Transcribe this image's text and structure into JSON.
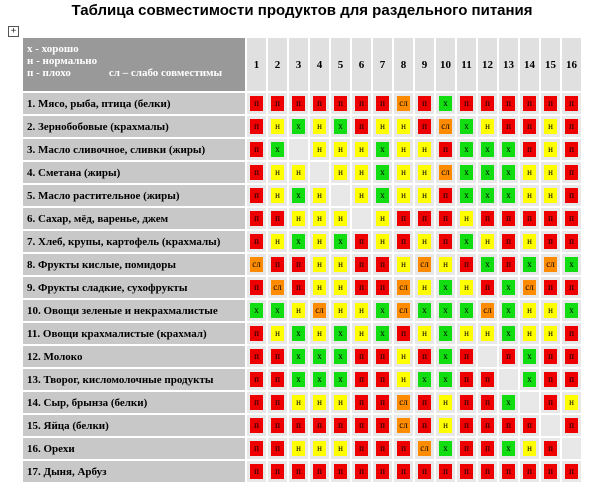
{
  "title": "Таблица совместимости продуктов для раздельного питания",
  "legend": [
    {
      "code": "х",
      "text": " -  хорошо",
      "color": "#11dd11"
    },
    {
      "code": "н",
      "text": " -  нормально",
      "color": "#ffff00"
    },
    {
      "code": "п",
      "text": " - плохо",
      "color": "#ee0000"
    },
    {
      "code": "сл",
      "text": " – слабо совместимы",
      "color": "#ff8c00"
    }
  ],
  "columns": [
    "1",
    "2",
    "3",
    "4",
    "5",
    "6",
    "7",
    "8",
    "9",
    "10",
    "11",
    "12",
    "13",
    "14",
    "15",
    "16"
  ],
  "rows": [
    {
      "label": "1. Мясо, рыба, птица (белки)",
      "cells": [
        "п",
        "п",
        "п",
        "п",
        "п",
        "п",
        "п",
        "сл",
        "п",
        "х",
        "п",
        "п",
        "п",
        "п",
        "п",
        "п"
      ]
    },
    {
      "label": "2. Зернобобовые (крахмалы)",
      "cells": [
        "п",
        "н",
        "х",
        "н",
        "х",
        "п",
        "н",
        "н",
        "п",
        "сл",
        "х",
        "н",
        "п",
        "п",
        "н",
        "п"
      ]
    },
    {
      "label": "3. Масло сливочное, сливки (жиры)",
      "cells": [
        "п",
        "х",
        "",
        "н",
        "н",
        "н",
        "х",
        "н",
        "н",
        "п",
        "х",
        "х",
        "х",
        "п",
        "н",
        "п"
      ]
    },
    {
      "label": "4. Сметана (жиры)",
      "cells": [
        "п",
        "н",
        "н",
        "",
        "н",
        "н",
        "х",
        "н",
        "н",
        "сл",
        "х",
        "х",
        "х",
        "н",
        "н",
        "п"
      ]
    },
    {
      "label": "5. Масло растительное (жиры)",
      "cells": [
        "п",
        "н",
        "х",
        "н",
        "",
        "н",
        "х",
        "н",
        "н",
        "п",
        "х",
        "х",
        "х",
        "н",
        "н",
        "п"
      ]
    },
    {
      "label": "6. Сахар, мёд, варенье, джем",
      "cells": [
        "п",
        "п",
        "н",
        "н",
        "н",
        "",
        "н",
        "п",
        "п",
        "п",
        "н",
        "п",
        "п",
        "п",
        "п",
        "п"
      ]
    },
    {
      "label": "7. Хлеб, крупы, картофель (крахмалы)",
      "cells": [
        "п",
        "н",
        "х",
        "н",
        "х",
        "п",
        "н",
        "п",
        "н",
        "п",
        "х",
        "н",
        "п",
        "н",
        "п",
        "п"
      ]
    },
    {
      "label": "8. Фрукты кислые, помидоры",
      "cells": [
        "сл",
        "п",
        "п",
        "н",
        "н",
        "п",
        "п",
        "н",
        "сл",
        "н",
        "п",
        "х",
        "п",
        "х",
        "сл",
        "х"
      ]
    },
    {
      "label": "9. Фрукты сладкие, сухофрукты",
      "cells": [
        "п",
        "сл",
        "п",
        "н",
        "н",
        "п",
        "п",
        "сл",
        "н",
        "х",
        "н",
        "п",
        "х",
        "сл",
        "п",
        "п"
      ]
    },
    {
      "label": "10. Овощи зеленые и некрахмалистые",
      "cells": [
        "х",
        "х",
        "н",
        "сл",
        "н",
        "н",
        "х",
        "сл",
        "х",
        "х",
        "х",
        "сл",
        "х",
        "н",
        "н",
        "х"
      ]
    },
    {
      "label": "11. Овощи крахмалистые (крахмал)",
      "cells": [
        "п",
        "н",
        "х",
        "н",
        "х",
        "н",
        "х",
        "п",
        "н",
        "х",
        "н",
        "н",
        "х",
        "н",
        "н",
        "п"
      ]
    },
    {
      "label": "12. Молоко",
      "cells": [
        "п",
        "п",
        "х",
        "х",
        "х",
        "п",
        "п",
        "н",
        "п",
        "х",
        "п",
        "",
        "п",
        "х",
        "п",
        "п"
      ]
    },
    {
      "label": "13. Творог, кисломолочные продукты",
      "cells": [
        "п",
        "п",
        "х",
        "х",
        "х",
        "п",
        "п",
        "н",
        "х",
        "х",
        "п",
        "п",
        "",
        "х",
        "п",
        "п"
      ]
    },
    {
      "label": "14. Сыр, брынза (белки)",
      "cells": [
        "п",
        "п",
        "н",
        "н",
        "н",
        "п",
        "п",
        "сл",
        "п",
        "н",
        "п",
        "п",
        "х",
        "",
        "п",
        "н"
      ]
    },
    {
      "label": "15. Яйца (белки)",
      "cells": [
        "п",
        "п",
        "п",
        "п",
        "п",
        "п",
        "п",
        "сл",
        "п",
        "н",
        "п",
        "п",
        "п",
        "п",
        "",
        "п"
      ]
    },
    {
      "label": "16. Орехи",
      "cells": [
        "п",
        "п",
        "н",
        "н",
        "н",
        "п",
        "п",
        "п",
        "сл",
        "х",
        "п",
        "п",
        "х",
        "н",
        "п",
        ""
      ]
    },
    {
      "label": "17. Дыня, Арбуз",
      "cells": [
        "п",
        "п",
        "п",
        "п",
        "п",
        "п",
        "п",
        "п",
        "п",
        "п",
        "п",
        "п",
        "п",
        "п",
        "п",
        "п"
      ]
    }
  ]
}
